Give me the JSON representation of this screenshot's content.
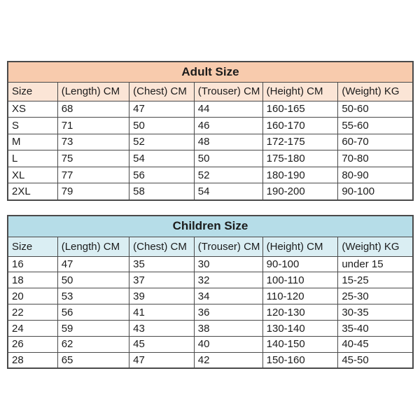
{
  "page": {
    "background_color": "#ffffff",
    "text_color": "#1c1c1c",
    "border_color": "#4a4a4a"
  },
  "chart_data": [
    {
      "type": "table",
      "title": "Adult Size",
      "title_bg": "#f8cbad",
      "header_bg": "#fbe5d6",
      "columns": [
        "Size",
        "(Length) CM",
        "(Chest) CM",
        "(Trouser) CM",
        "(Height) CM",
        "(Weight) KG"
      ],
      "rows": [
        [
          "XS",
          "68",
          "47",
          "44",
          "160-165",
          "50-60"
        ],
        [
          "S",
          "71",
          "50",
          "46",
          "160-170",
          "55-60"
        ],
        [
          "M",
          "73",
          "52",
          "48",
          "172-175",
          "60-70"
        ],
        [
          "L",
          "75",
          "54",
          "50",
          "175-180",
          "70-80"
        ],
        [
          "XL",
          "77",
          "56",
          "52",
          "180-190",
          "80-90"
        ],
        [
          "2XL",
          "79",
          "58",
          "54",
          "190-200",
          "90-100"
        ]
      ]
    },
    {
      "type": "table",
      "title": "Children Size",
      "title_bg": "#b6dde8",
      "header_bg": "#daeef3",
      "columns": [
        "Size",
        "(Length) CM",
        "(Chest) CM",
        "(Trouser) CM",
        "(Height) CM",
        "(Weight) KG"
      ],
      "rows": [
        [
          "16",
          "47",
          "35",
          "30",
          "90-100",
          "under 15"
        ],
        [
          "18",
          "50",
          "37",
          "32",
          "100-110",
          "15-25"
        ],
        [
          "20",
          "53",
          "39",
          "34",
          "110-120",
          "25-30"
        ],
        [
          "22",
          "56",
          "41",
          "36",
          "120-130",
          "30-35"
        ],
        [
          "24",
          "59",
          "43",
          "38",
          "130-140",
          "35-40"
        ],
        [
          "26",
          "62",
          "45",
          "40",
          "140-150",
          "40-45"
        ],
        [
          "28",
          "65",
          "47",
          "42",
          "150-160",
          "45-50"
        ]
      ]
    }
  ]
}
